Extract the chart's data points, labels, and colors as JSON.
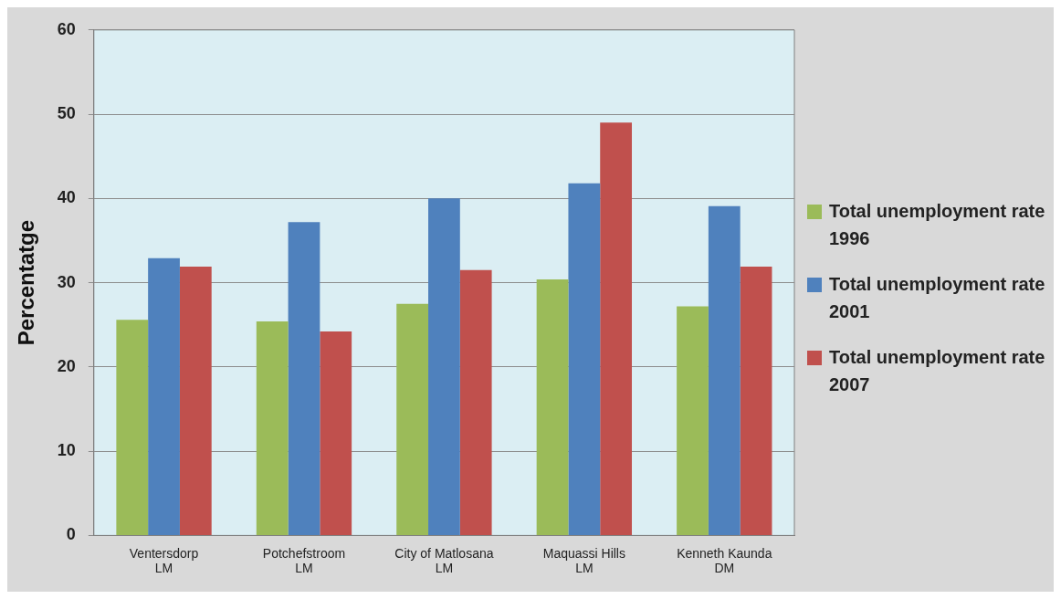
{
  "chart_data": {
    "type": "bar",
    "ylabel": "Percentatge",
    "categories": [
      "Ventersdorp LM",
      "Potchefstroom LM",
      "City of Matlosana LM",
      "Maquassi Hills LM",
      "Kenneth Kaunda DM"
    ],
    "series": [
      {
        "name": "Total unemployment rate 1996",
        "color": "#9bbb59",
        "values": [
          25.6,
          25.4,
          27.5,
          30.4,
          27.2
        ]
      },
      {
        "name": "Total unemployment rate 2001",
        "color": "#4f81bd",
        "values": [
          32.9,
          37.2,
          40,
          41.8,
          39.1
        ]
      },
      {
        "name": "Total unemployment rate 2007",
        "color": "#c0504d",
        "values": [
          31.9,
          24.2,
          31.5,
          49,
          31.9
        ]
      }
    ],
    "ylim": [
      0,
      60
    ],
    "yticks": [
      0,
      10,
      20,
      30,
      40,
      50,
      60
    ],
    "grid": "y",
    "legend": "right"
  }
}
